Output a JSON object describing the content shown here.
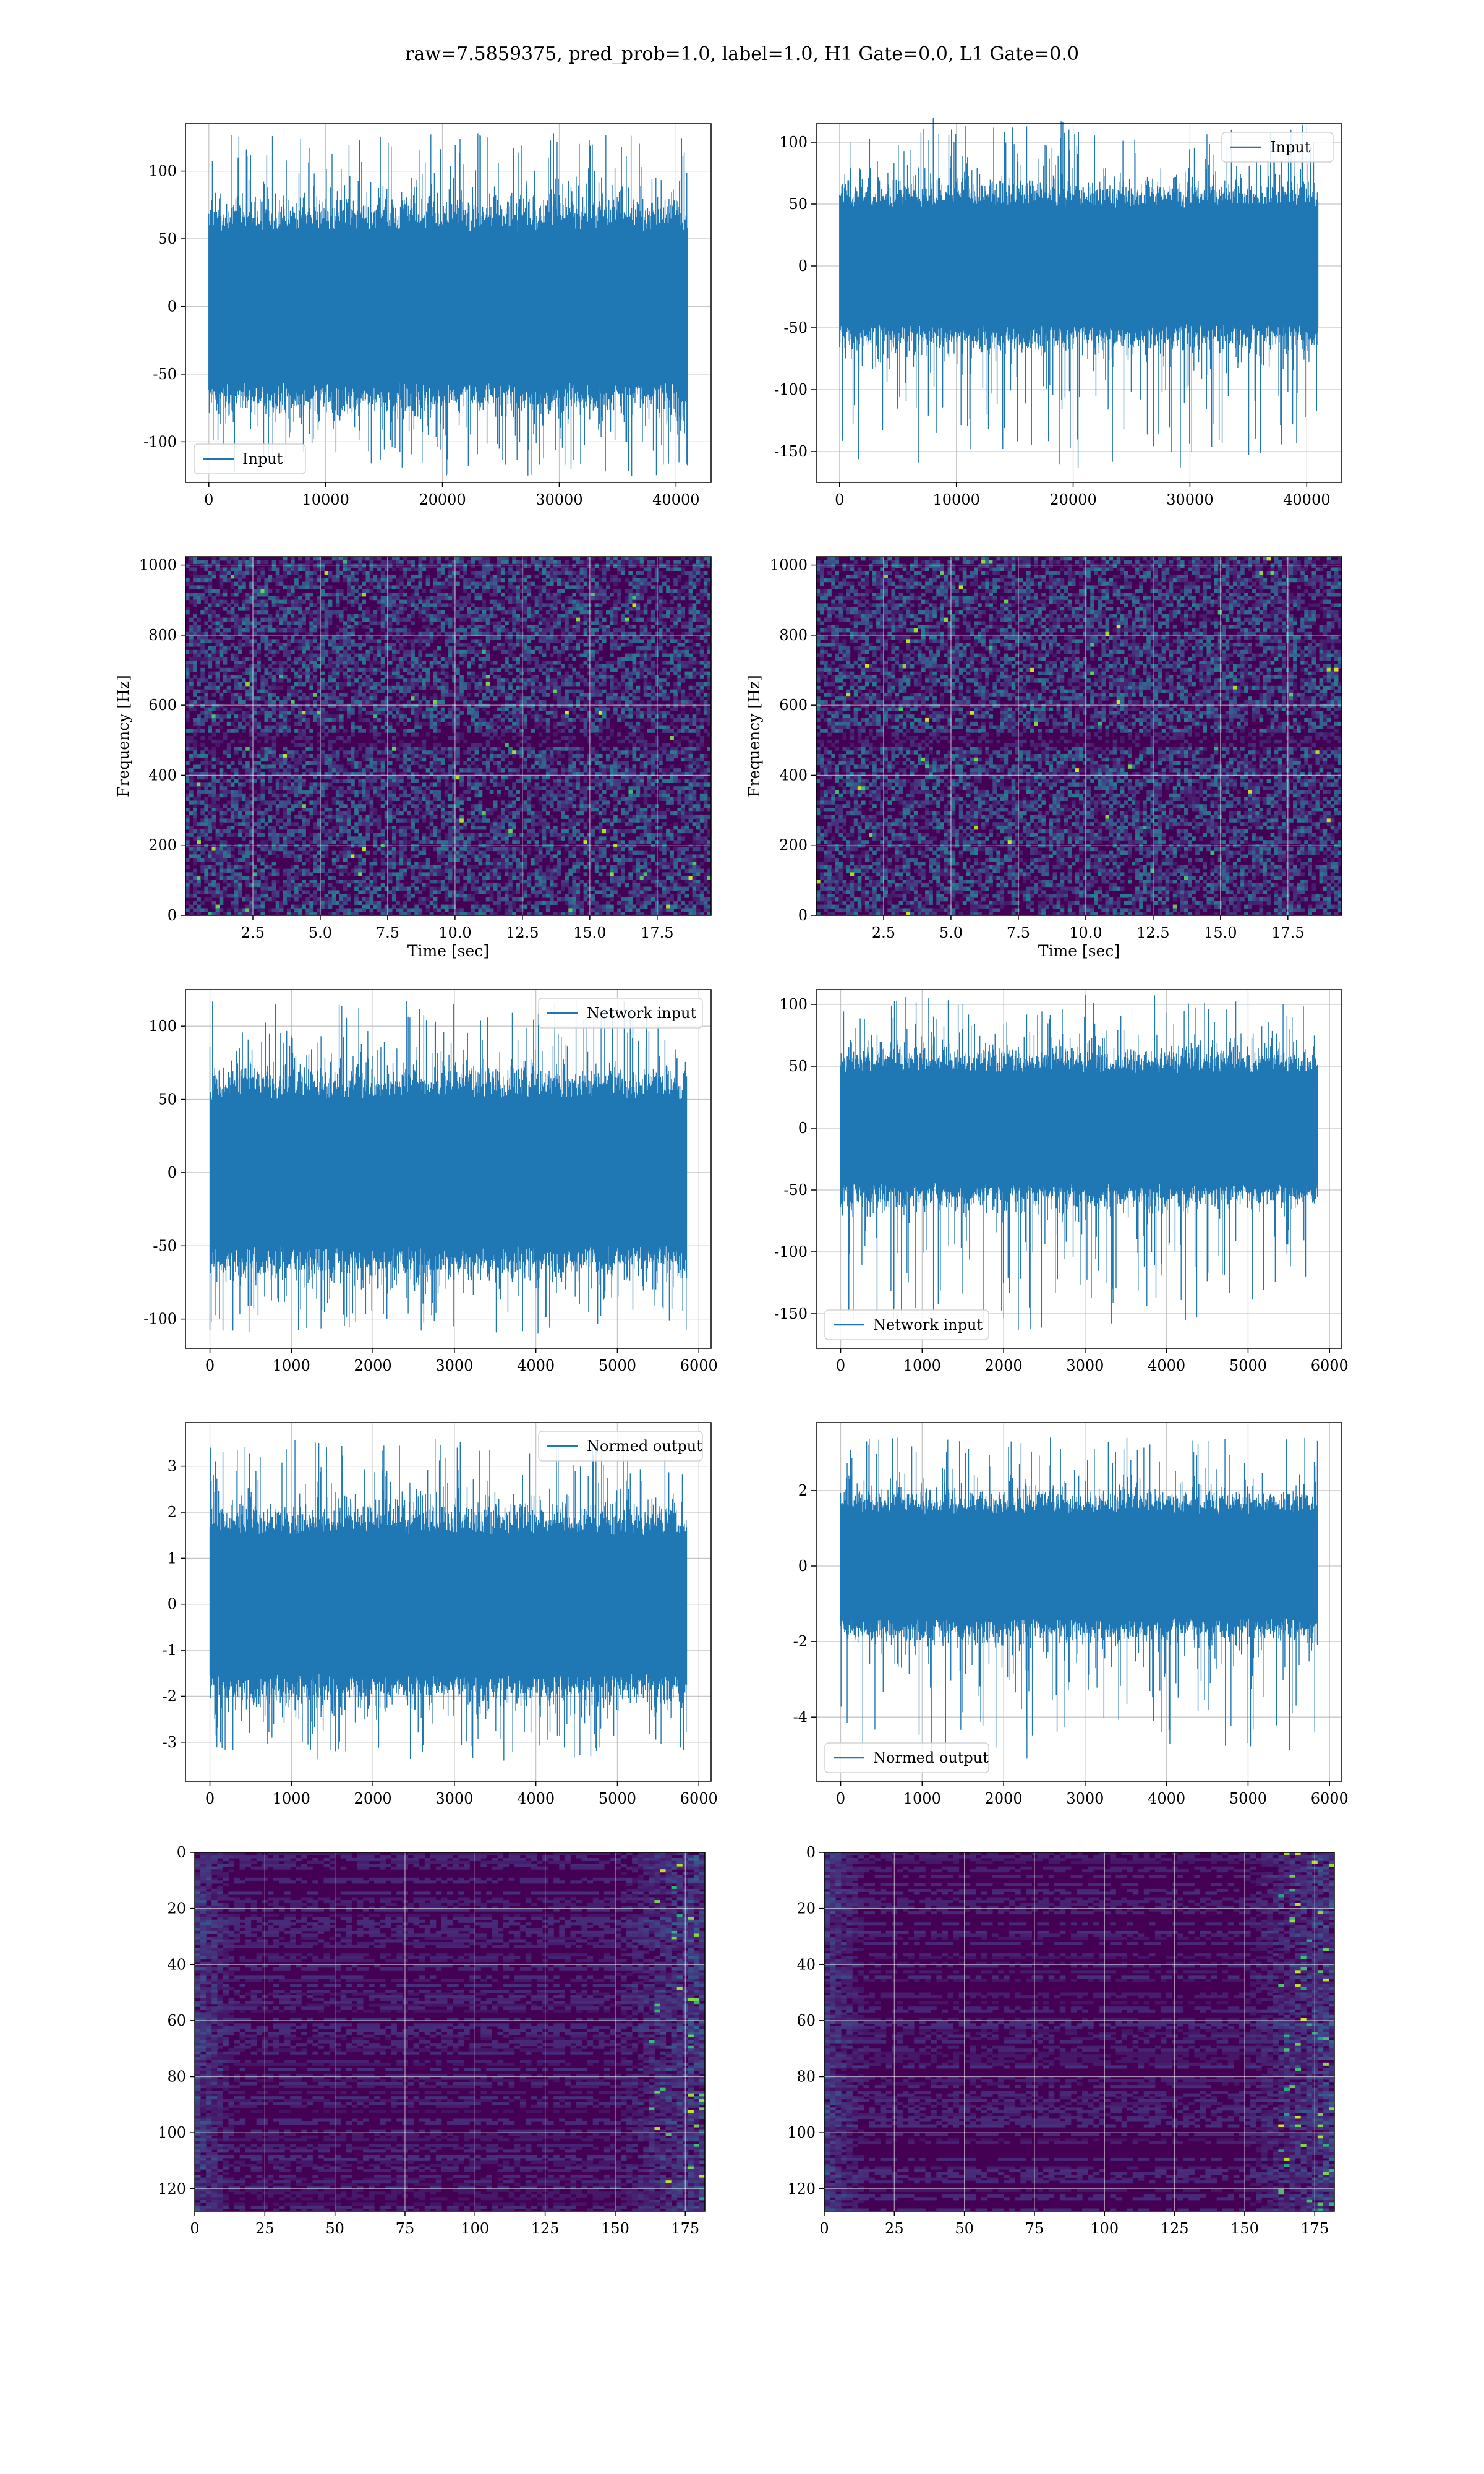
{
  "figure": {
    "title": "raw=7.5859375, pred_prob=1.0, label=1.0, H1 Gate=0.0, L1 Gate=0.0"
  },
  "colors": {
    "line": "#1f77b4",
    "grid": "#b0b0b0",
    "viridis_low": "#440154",
    "viridis_high": "#fde725"
  },
  "chart_data": [
    {
      "id": "input_h1",
      "type": "line",
      "xlim": [
        -2000,
        43000
      ],
      "ylim": [
        -130,
        135
      ],
      "xticks": [
        0,
        10000,
        20000,
        30000,
        40000
      ],
      "yticks": [
        -100,
        -50,
        0,
        50,
        100
      ],
      "series": [
        {
          "name": "Input",
          "x_range": [
            0,
            40960
          ],
          "n_points": 40960,
          "typical_amplitude": 65,
          "peak_range": [
            -125,
            128
          ]
        }
      ],
      "legend_loc": "lower left",
      "grid": true,
      "xlabel": "",
      "ylabel": ""
    },
    {
      "id": "input_l1",
      "type": "line",
      "xlim": [
        -2000,
        43000
      ],
      "ylim": [
        -175,
        115
      ],
      "xticks": [
        0,
        10000,
        20000,
        30000,
        40000
      ],
      "yticks": [
        -150,
        -100,
        -50,
        0,
        50,
        100
      ],
      "series": [
        {
          "name": "Input",
          "x_range": [
            0,
            40960
          ],
          "n_points": 40960,
          "typical_amplitude": 55,
          "peak_range": [
            -163,
            120
          ]
        }
      ],
      "legend_loc": "upper right",
      "grid": true,
      "xlabel": "",
      "ylabel": ""
    },
    {
      "id": "spec_h1",
      "type": "heatmap",
      "xlim": [
        0,
        19.5
      ],
      "ylim": [
        0,
        1024
      ],
      "xticks": [
        2.5,
        5.0,
        7.5,
        10.0,
        12.5,
        15.0,
        17.5
      ],
      "yticks": [
        0,
        200,
        400,
        600,
        800,
        1000
      ],
      "xlabel": "Time [sec]",
      "ylabel": "Frequency [Hz]",
      "colormap": "viridis",
      "grid": true
    },
    {
      "id": "spec_l1",
      "type": "heatmap",
      "xlim": [
        0,
        19.5
      ],
      "ylim": [
        0,
        1024
      ],
      "xticks": [
        2.5,
        5.0,
        7.5,
        10.0,
        12.5,
        15.0,
        17.5
      ],
      "yticks": [
        0,
        200,
        400,
        600,
        800,
        1000
      ],
      "xlabel": "Time [sec]",
      "ylabel": "Frequency [Hz]",
      "colormap": "viridis",
      "grid": true
    },
    {
      "id": "net_h1",
      "type": "line",
      "xlim": [
        -300,
        6150
      ],
      "ylim": [
        -120,
        125
      ],
      "xticks": [
        0,
        1000,
        2000,
        3000,
        4000,
        5000,
        6000
      ],
      "yticks": [
        -100,
        -50,
        0,
        50,
        100
      ],
      "series": [
        {
          "name": "Network input",
          "x_range": [
            0,
            5850
          ],
          "n_points": 5850,
          "typical_amplitude": 58,
          "peak_range": [
            -110,
            117
          ]
        }
      ],
      "legend_loc": "upper right",
      "grid": true,
      "xlabel": "",
      "ylabel": ""
    },
    {
      "id": "net_l1",
      "type": "line",
      "xlim": [
        -300,
        6150
      ],
      "ylim": [
        -178,
        112
      ],
      "xticks": [
        0,
        1000,
        2000,
        3000,
        4000,
        5000,
        6000
      ],
      "yticks": [
        -150,
        -100,
        -50,
        0,
        50,
        100
      ],
      "series": [
        {
          "name": "Network input",
          "x_range": [
            0,
            5850
          ],
          "n_points": 5850,
          "typical_amplitude": 52,
          "peak_range": [
            -163,
            108
          ]
        }
      ],
      "legend_loc": "lower left",
      "grid": true,
      "xlabel": "",
      "ylabel": ""
    },
    {
      "id": "norm_h1",
      "type": "line",
      "xlim": [
        -300,
        6150
      ],
      "ylim": [
        -3.85,
        3.95
      ],
      "xticks": [
        0,
        1000,
        2000,
        3000,
        4000,
        5000,
        6000
      ],
      "yticks": [
        -3,
        -2,
        -1,
        0,
        1,
        2,
        3
      ],
      "series": [
        {
          "name": "Normed output",
          "x_range": [
            0,
            5850
          ],
          "n_points": 5850,
          "typical_amplitude": 1.75,
          "peak_range": [
            -3.4,
            3.6
          ]
        }
      ],
      "legend_loc": "upper right",
      "grid": true,
      "xlabel": "",
      "ylabel": ""
    },
    {
      "id": "norm_l1",
      "type": "line",
      "xlim": [
        -300,
        6150
      ],
      "ylim": [
        -5.7,
        3.8
      ],
      "xticks": [
        0,
        1000,
        2000,
        3000,
        4000,
        5000,
        6000
      ],
      "yticks": [
        -4,
        -2,
        0,
        2
      ],
      "series": [
        {
          "name": "Normed output",
          "x_range": [
            0,
            5850
          ],
          "n_points": 5850,
          "typical_amplitude": 1.6,
          "peak_range": [
            -5.1,
            3.4
          ]
        }
      ],
      "legend_loc": "lower left",
      "grid": true,
      "xlabel": "",
      "ylabel": ""
    },
    {
      "id": "feat_h1",
      "type": "heatmap",
      "xlim": [
        0,
        182
      ],
      "ylim": [
        128,
        0
      ],
      "xticks": [
        0,
        25,
        50,
        75,
        100,
        125,
        150,
        175
      ],
      "yticks": [
        0,
        20,
        40,
        60,
        80,
        100,
        120
      ],
      "colormap": "viridis",
      "grid": true,
      "xlabel": "",
      "ylabel": ""
    },
    {
      "id": "feat_l1",
      "type": "heatmap",
      "xlim": [
        0,
        182
      ],
      "ylim": [
        128,
        0
      ],
      "xticks": [
        0,
        25,
        50,
        75,
        100,
        125,
        150,
        175
      ],
      "yticks": [
        0,
        20,
        40,
        60,
        80,
        100,
        120
      ],
      "colormap": "viridis",
      "grid": true,
      "xlabel": "",
      "ylabel": ""
    }
  ]
}
